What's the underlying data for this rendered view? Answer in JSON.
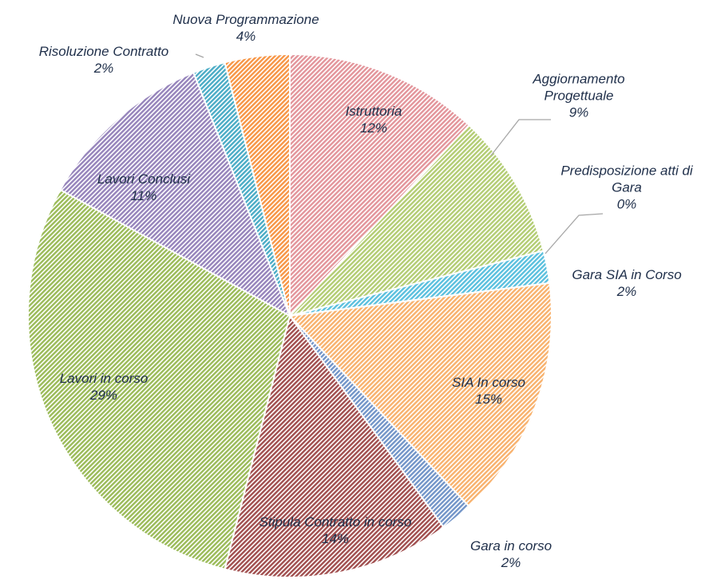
{
  "chart_data": {
    "type": "pie",
    "categories": [
      "Istruttoria",
      "Aggiornamento Progettuale",
      "Predisposizione atti di Gara",
      "Gara SIA in Corso",
      "SIA In corso",
      "Gara in corso",
      "Stipula Contratto in corso",
      "Lavori in corso",
      "Lavori Conclusi",
      "Risoluzione Contratto",
      "Nuova Programmazione"
    ],
    "values": [
      12,
      9,
      0,
      2,
      15,
      2,
      14,
      29,
      11,
      2,
      4
    ],
    "value_labels": [
      "12%",
      "9%",
      "0%",
      "2%",
      "15%",
      "2%",
      "14%",
      "29%",
      "11%",
      "2%",
      "4%"
    ],
    "colors": [
      "#e3959b",
      "#b3cd74",
      "#8064a2",
      "#5bc0de",
      "#f8b26e",
      "#7395c8",
      "#a14f4f",
      "#9bbb59",
      "#9684bb",
      "#4bacc6",
      "#f79646"
    ]
  }
}
